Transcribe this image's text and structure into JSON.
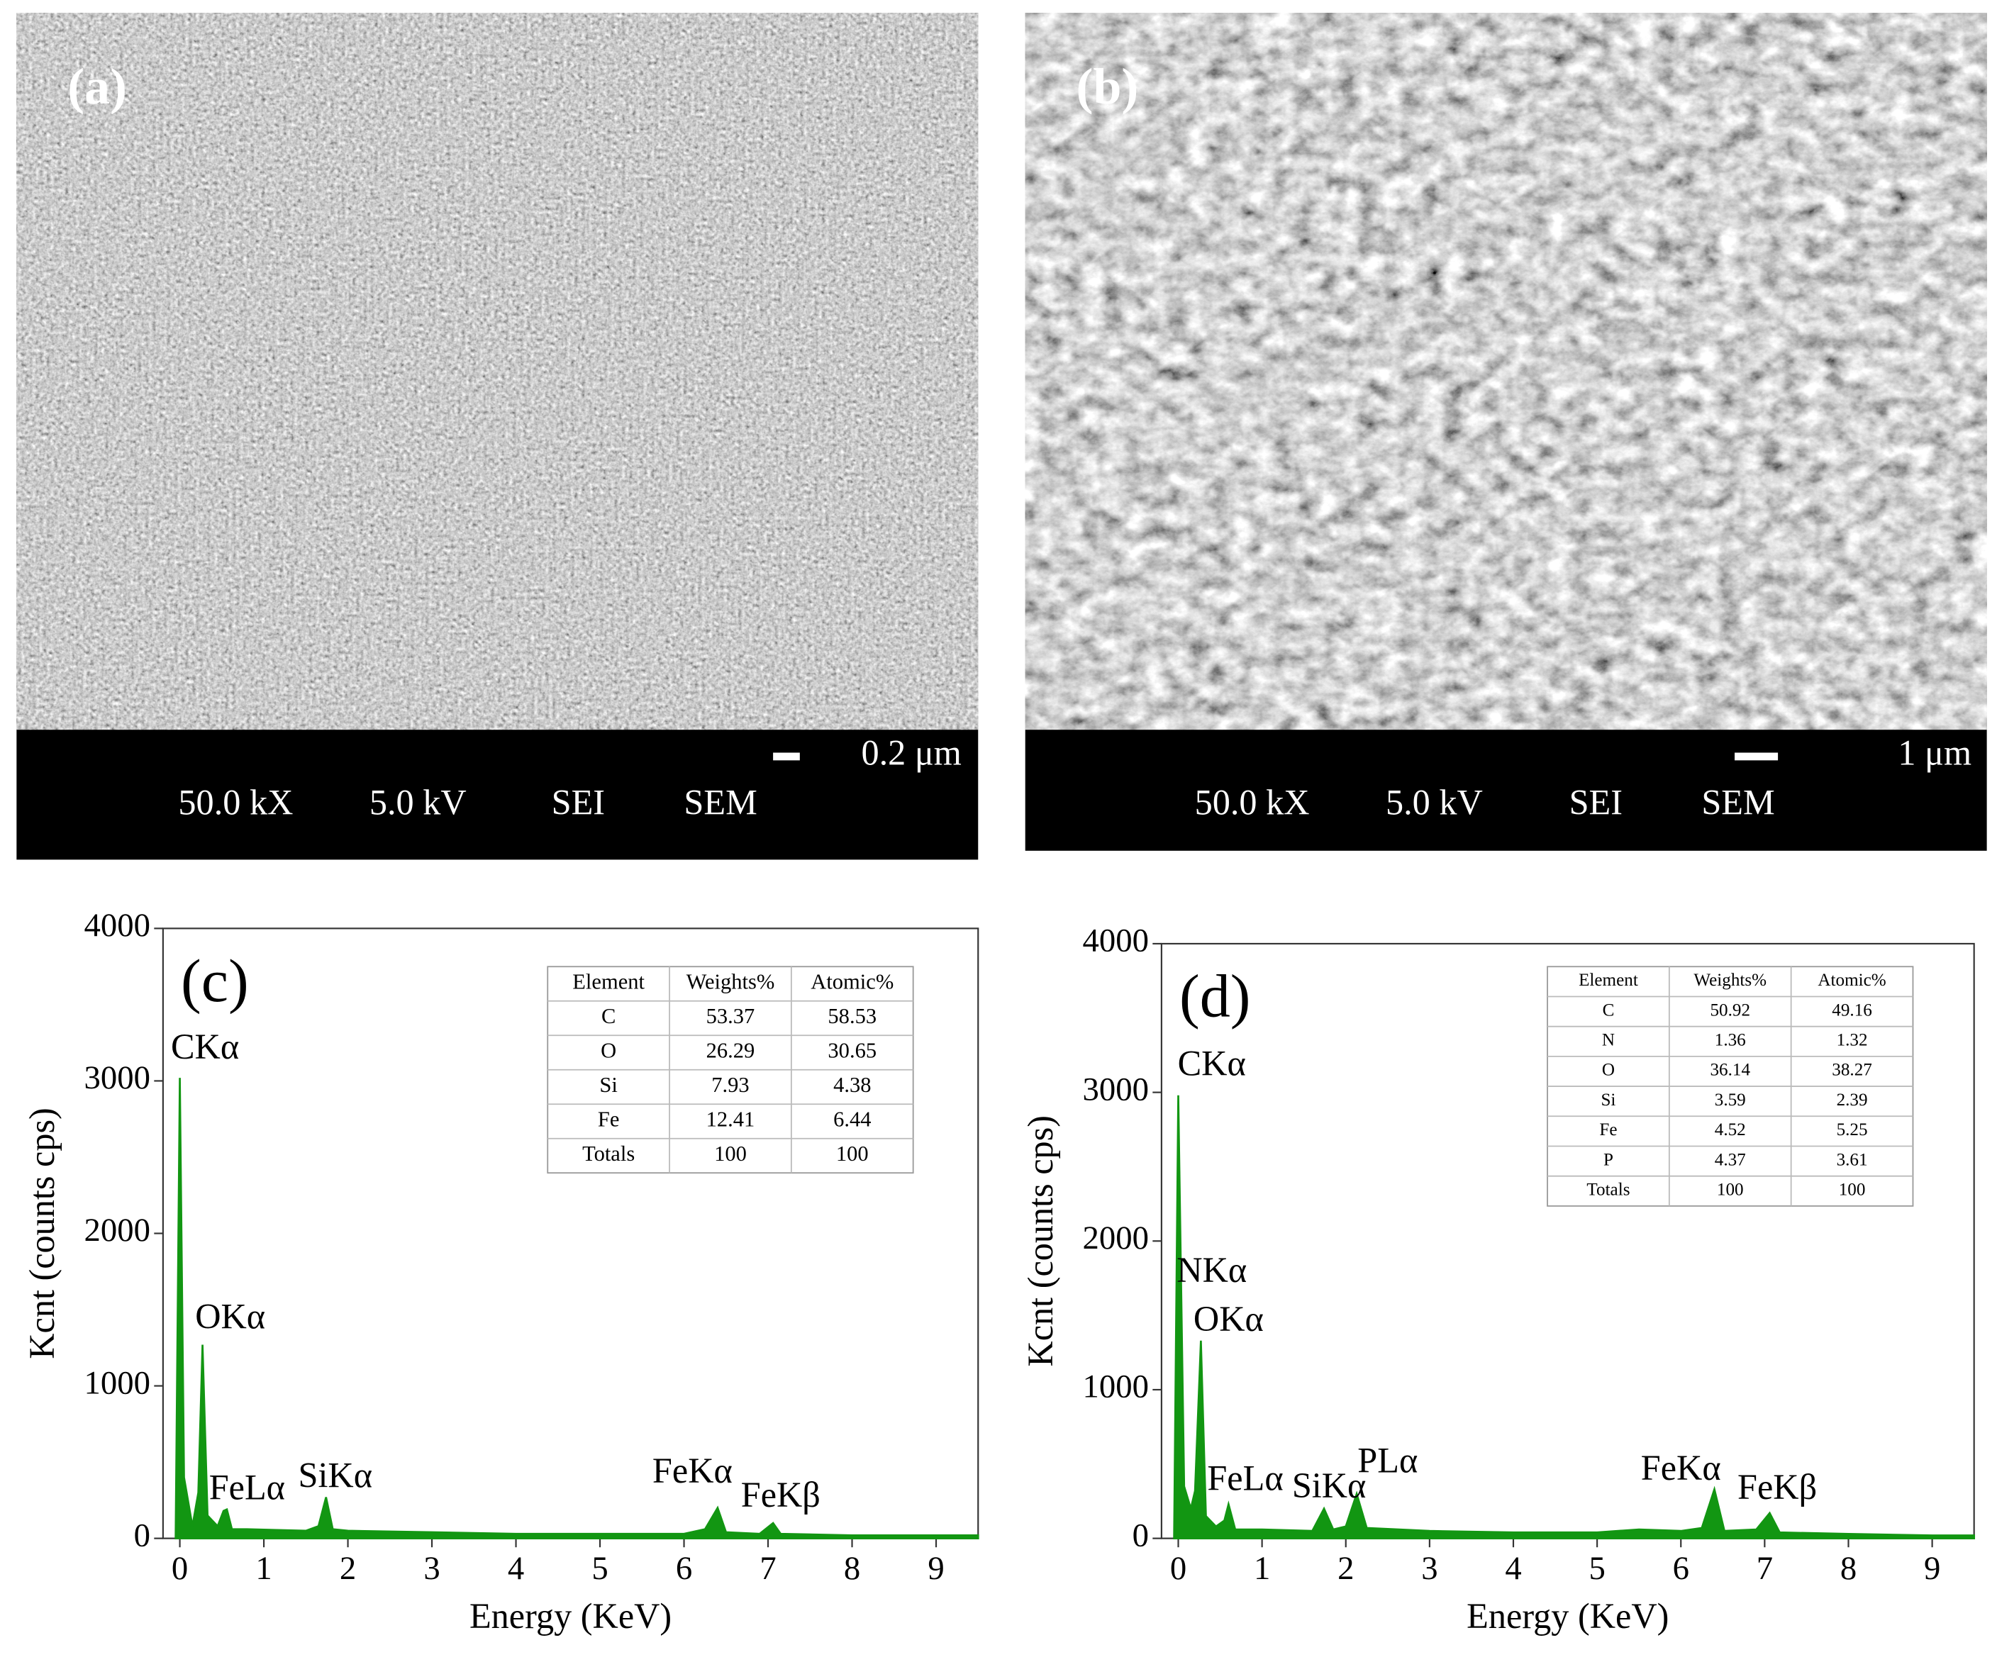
{
  "sem_images": [
    {
      "label": "(a)",
      "magnification": "50.0 kX",
      "voltage": "5.0 kV",
      "detector": "SEI",
      "mode": "SEM",
      "scale": "0.2 μm"
    },
    {
      "label": "(b)",
      "magnification": "50.0 kX",
      "voltage": "5.0 kV",
      "detector": "SEI",
      "mode": "SEM",
      "scale": "1 μm"
    }
  ],
  "chart_data": [
    {
      "type": "area",
      "label": "(c)",
      "x_label": "Energy (KeV)",
      "y_label": "Kcnt (counts cps)",
      "xlim": [
        -0.2,
        9.5
      ],
      "xticks": [
        0,
        1,
        2,
        3,
        4,
        5,
        6,
        7,
        8,
        9
      ],
      "ylim": [
        0,
        4000
      ],
      "yticks": [
        0,
        1000,
        2000,
        3000,
        4000
      ],
      "color": "#129612",
      "x": [
        -0.05,
        0,
        0.05,
        0.15,
        0.22,
        0.27,
        0.33,
        0.45,
        0.52,
        0.56,
        0.62,
        0.8,
        1.5,
        1.65,
        1.74,
        1.82,
        2.0,
        3,
        4,
        5,
        6,
        6.25,
        6.4,
        6.5,
        6.9,
        7.06,
        7.15,
        8,
        9,
        9.5
      ],
      "values": [
        0,
        3020,
        400,
        80,
        300,
        1270,
        150,
        80,
        180,
        190,
        60,
        60,
        50,
        80,
        270,
        60,
        50,
        40,
        30,
        30,
        30,
        60,
        200,
        40,
        30,
        100,
        30,
        20,
        20,
        20
      ],
      "annotations": [
        "CKα",
        "OKα",
        "FeLα",
        "SiKα",
        "FeKα",
        "FeKβ"
      ],
      "table": {
        "header": [
          "Element",
          "Weights%",
          "Atomic%"
        ],
        "rows": [
          [
            "C",
            "53.37",
            "58.53"
          ],
          [
            "O",
            "26.29",
            "30.65"
          ],
          [
            "Si",
            "7.93",
            "4.38"
          ],
          [
            "Fe",
            "12.41",
            "6.44"
          ],
          [
            "Totals",
            "100",
            "100"
          ]
        ]
      }
    },
    {
      "type": "area",
      "label": "(d)",
      "x_label": "Energy (KeV)",
      "y_label": "Kcnt (counts cps)",
      "xlim": [
        -0.2,
        9.5
      ],
      "xticks": [
        0,
        1,
        2,
        3,
        4,
        5,
        6,
        7,
        8,
        9
      ],
      "ylim": [
        0,
        4000
      ],
      "yticks": [
        0,
        1000,
        2000,
        3000,
        4000
      ],
      "color": "#129612",
      "x": [
        -0.05,
        0,
        0.07,
        0.15,
        0.2,
        0.27,
        0.33,
        0.45,
        0.55,
        0.6,
        0.68,
        1.0,
        1.6,
        1.74,
        1.85,
        2.0,
        2.13,
        2.25,
        3,
        4,
        5,
        5.5,
        6.0,
        6.25,
        6.4,
        6.52,
        6.9,
        7.06,
        7.18,
        8,
        9,
        9.5
      ],
      "values": [
        0,
        2980,
        350,
        200,
        320,
        1330,
        150,
        80,
        120,
        230,
        60,
        60,
        50,
        200,
        60,
        80,
        300,
        70,
        50,
        40,
        40,
        60,
        50,
        70,
        330,
        50,
        60,
        170,
        40,
        30,
        20,
        20
      ],
      "annotations": [
        "CKα",
        "NKα",
        "OKα",
        "FeLα",
        "SiKα",
        "PLα",
        "FeKα",
        "FeKβ"
      ],
      "table": {
        "header": [
          "Element",
          "Weights%",
          "Atomic%"
        ],
        "rows": [
          [
            "C",
            "50.92",
            "49.16"
          ],
          [
            "N",
            "1.36",
            "1.32"
          ],
          [
            "O",
            "36.14",
            "38.27"
          ],
          [
            "Si",
            "3.59",
            "2.39"
          ],
          [
            "Fe",
            "4.52",
            "5.25"
          ],
          [
            "P",
            "4.37",
            "3.61"
          ],
          [
            "Totals",
            "100",
            "100"
          ]
        ]
      }
    }
  ]
}
